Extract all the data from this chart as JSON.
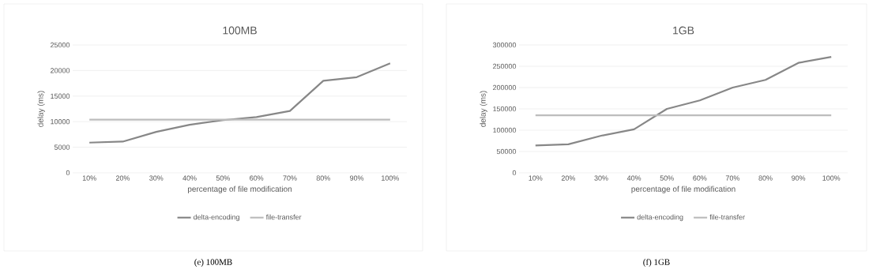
{
  "chart_data": [
    {
      "type": "line",
      "title": "100MB",
      "xlabel": "percentage of file modification",
      "ylabel": "delay (ms)",
      "categories": [
        "10%",
        "20%",
        "30%",
        "40%",
        "50%",
        "60%",
        "70%",
        "80%",
        "90%",
        "100%"
      ],
      "series": [
        {
          "name": "delta-encoding",
          "color": "#878787",
          "values": [
            5900,
            6100,
            8000,
            9400,
            10300,
            10900,
            12100,
            18000,
            18700,
            21400
          ]
        },
        {
          "name": "file-transfer",
          "color": "#bdbdbd",
          "values": [
            10400,
            10400,
            10400,
            10400,
            10400,
            10400,
            10400,
            10400,
            10400,
            10400
          ]
        }
      ],
      "ylim": [
        0,
        25000
      ],
      "yticks": [
        0,
        5000,
        10000,
        15000,
        20000,
        25000
      ],
      "grid": "y",
      "legend": "bottom",
      "annotations": [
        "(e) 100MB"
      ]
    },
    {
      "type": "line",
      "title": "1GB",
      "xlabel": "percentage of file modification",
      "ylabel": "delay (ms)",
      "categories": [
        "10%",
        "20%",
        "30%",
        "40%",
        "50%",
        "60%",
        "70%",
        "80%",
        "90%",
        "100%"
      ],
      "series": [
        {
          "name": "delta-encoding",
          "color": "#878787",
          "values": [
            64000,
            67000,
            87000,
            102000,
            150000,
            170000,
            200000,
            218000,
            258000,
            272000
          ]
        },
        {
          "name": "file-transfer",
          "color": "#bdbdbd",
          "values": [
            135000,
            135000,
            135000,
            135000,
            135000,
            135000,
            135000,
            135000,
            135000,
            135000
          ]
        }
      ],
      "ylim": [
        0,
        300000
      ],
      "yticks": [
        0,
        50000,
        100000,
        150000,
        200000,
        250000,
        300000
      ],
      "grid": "y",
      "legend": "bottom",
      "annotations": [
        "(f) 1GB"
      ]
    }
  ]
}
